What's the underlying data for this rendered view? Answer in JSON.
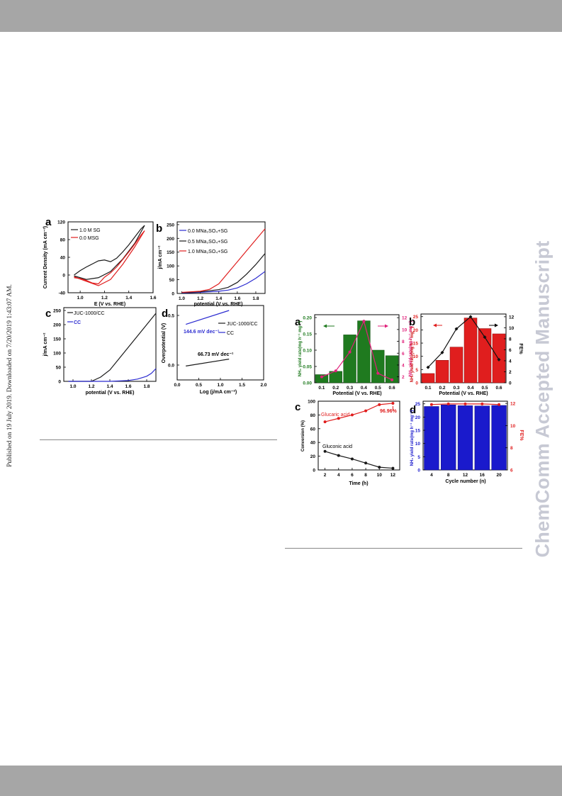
{
  "side_text": "Published on 19 July 2019. Downloaded on 7/20/2019 1:43:07 AM.",
  "watermark": "ChemComm Accepted Manuscript",
  "colors": {
    "black": "#1a1a1a",
    "red": "#e01e1e",
    "blue": "#2b2bd0",
    "green": "#1f7a1f",
    "magenta": "#e0207a",
    "darkred": "#cc1515",
    "navy": "#1a1acc",
    "grey_band": "#a6a6a6"
  },
  "fig_left": {
    "a": {
      "letter": "a",
      "xlabel": "E (V vs. RHE)",
      "ylabel": "Current Density (mA cm⁻²)",
      "xticks": [
        "1.0",
        "1.2",
        "1.4",
        "1.6"
      ],
      "yticks": [
        "120",
        "80",
        "40",
        "0",
        "-40"
      ],
      "legend": [
        "1.0 M SG",
        "0.0 MSG"
      ]
    },
    "b": {
      "letter": "b",
      "xlabel": "potential (V vs. RHE)",
      "ylabel": "j/mA cm⁻²",
      "xticks": [
        "1.0",
        "1.2",
        "1.4",
        "1.6",
        "1.8"
      ],
      "yticks": [
        "250",
        "200",
        "150",
        "100",
        "50",
        "0"
      ],
      "legend": [
        "0.0 MNa₂SO₄+SG",
        "0.5 MNa₂SO₄+SG",
        "1.0 MNa₂SO₄+SG"
      ]
    },
    "c": {
      "letter": "c",
      "xlabel": "potential (V vs. RHE)",
      "ylabel": "j/mA cm⁻²",
      "xticks": [
        "1.0",
        "1.2",
        "1.4",
        "1.6",
        "1.8"
      ],
      "yticks": [
        "250",
        "200",
        "150",
        "100",
        "50",
        "0"
      ],
      "legend": [
        "JUC-1000/CC",
        "CC"
      ]
    },
    "d": {
      "letter": "d",
      "xlabel": "Log (j/mA cm⁻²)",
      "ylabel": "Overpotential (V)",
      "xticks": [
        "0.0",
        "0.5",
        "1.0",
        "1.5",
        "2.0"
      ],
      "yticks": [
        "0.5",
        "0.0"
      ],
      "legend": [
        "JUC-1000/CC",
        "CC"
      ],
      "slope_cc": "144.6 mV dec⁻¹",
      "slope_juc": "66.73 mV dec⁻¹"
    }
  },
  "fig_right": {
    "a": {
      "letter": "a",
      "xlabel": "Potential (V vs. RHE)",
      "ylabel_left": "NH₃ yield rate(mg h⁻¹ mg⁻¹)",
      "ylabel_right": "NH₃ yield rate(mg h⁻¹ mg⁻¹)",
      "xticks": [
        "0.1",
        "0.2",
        "0.3",
        "0.4",
        "0.5",
        "0.6"
      ],
      "yticks_left": [
        "0.20",
        "0.15",
        "0.10",
        "0.05",
        "0.00"
      ],
      "yticks_right": [
        "12",
        "10",
        "8",
        "6",
        "4",
        "2"
      ]
    },
    "b": {
      "letter": "b",
      "xlabel": "Potential (V vs. RHE)",
      "ylabel_right": "FE%",
      "ylabel_left": "NH₃ yield rate(mg h⁻¹ mg⁻¹)",
      "xticks": [
        "0.1",
        "0.2",
        "0.3",
        "0.4",
        "0.5",
        "0.6"
      ],
      "yticks_left": [
        "25",
        "20",
        "15",
        "10",
        "5",
        "0"
      ],
      "yticks_right": [
        "12",
        "10",
        "8",
        "6",
        "4",
        "2",
        "0"
      ]
    },
    "c": {
      "letter": "c",
      "xlabel": "Time (h)",
      "ylabel": "Conversion (%)",
      "xticks": [
        "2",
        "4",
        "6",
        "8",
        "10",
        "12"
      ],
      "yticks": [
        "100",
        "80",
        "60",
        "40",
        "20",
        "0"
      ],
      "label_glucaric": "Glucaric acid",
      "label_gluconic": "Gluconic acid",
      "annotation": "96.96%"
    },
    "d": {
      "letter": "d",
      "xlabel": "Cycle number (n)",
      "ylabel_left": "NH₃ yield rate(mg h⁻¹ mg⁻¹)",
      "ylabel_right": "FE%",
      "xticks": [
        "4",
        "8",
        "12",
        "16",
        "20"
      ],
      "yticks_left": [
        "25",
        "20",
        "15",
        "10",
        "5",
        "0"
      ],
      "yticks_right": [
        "12",
        "10",
        "8",
        "6"
      ]
    }
  },
  "chart_data": [
    {
      "panel": "left-a",
      "type": "line",
      "series": [
        {
          "name": "1.0 M SG",
          "x": [
            0.95,
            1.0,
            1.05,
            1.1,
            1.15,
            1.2,
            1.25,
            1.3,
            1.35,
            1.4,
            1.45,
            1.5,
            1.53
          ],
          "y": [
            0,
            10,
            18,
            25,
            32,
            34,
            30,
            38,
            52,
            68,
            86,
            104,
            112
          ]
        },
        {
          "name": "0.0 MSG",
          "x": [
            0.95,
            1.0,
            1.05,
            1.1,
            1.15,
            1.2,
            1.25,
            1.3,
            1.35,
            1.4,
            1.45,
            1.5,
            1.53
          ],
          "y": [
            -6,
            -8,
            -12,
            -18,
            -20,
            -5,
            5,
            18,
            35,
            52,
            70,
            90,
            100
          ]
        }
      ],
      "xlim": [
        0.9,
        1.6
      ],
      "ylim": [
        -40,
        120
      ]
    },
    {
      "panel": "left-b",
      "type": "line",
      "series": [
        {
          "name": "0.0 MNa2SO4+SG",
          "x": [
            1.0,
            1.2,
            1.4,
            1.5,
            1.6,
            1.7,
            1.8,
            1.9
          ],
          "y": [
            2,
            4,
            8,
            12,
            20,
            35,
            55,
            80
          ]
        },
        {
          "name": "0.5 MNa2SO4+SG",
          "x": [
            1.0,
            1.2,
            1.4,
            1.5,
            1.6,
            1.7,
            1.8,
            1.9
          ],
          "y": [
            3,
            6,
            14,
            22,
            40,
            70,
            105,
            145
          ]
        },
        {
          "name": "1.0 MNa2SO4+SG",
          "x": [
            1.0,
            1.2,
            1.3,
            1.4,
            1.5,
            1.6,
            1.7,
            1.8,
            1.9
          ],
          "y": [
            4,
            8,
            15,
            35,
            75,
            115,
            155,
            195,
            235
          ]
        }
      ],
      "xlim": [
        0.95,
        1.9
      ],
      "ylim": [
        0,
        250
      ]
    },
    {
      "panel": "left-c",
      "type": "line",
      "series": [
        {
          "name": "JUC-1000/CC",
          "x": [
            0.95,
            1.2,
            1.3,
            1.4,
            1.5,
            1.6,
            1.7,
            1.8,
            1.9
          ],
          "y": [
            0,
            0,
            15,
            40,
            80,
            120,
            160,
            200,
            240
          ]
        },
        {
          "name": "CC",
          "x": [
            0.95,
            1.4,
            1.6,
            1.7,
            1.8,
            1.85,
            1.9
          ],
          "y": [
            0,
            0,
            3,
            8,
            18,
            28,
            45
          ]
        }
      ],
      "xlim": [
        0.9,
        1.9
      ],
      "ylim": [
        0,
        250
      ]
    },
    {
      "panel": "left-d",
      "type": "line",
      "series": [
        {
          "name": "CC",
          "x": [
            0.2,
            1.2
          ],
          "y": [
            0.41,
            0.55
          ]
        },
        {
          "name": "JUC-1000/CC",
          "x": [
            0.2,
            1.2
          ],
          "y": [
            -0.01,
            0.06
          ]
        }
      ],
      "xlim": [
        0.0,
        2.0
      ],
      "ylim": [
        -0.15,
        0.6
      ]
    },
    {
      "panel": "right-a",
      "type": "bar",
      "categories": [
        "0.1",
        "0.2",
        "0.3",
        "0.4",
        "0.5",
        "0.6"
      ],
      "series": [
        {
          "name": "NH3 yield rate",
          "values": [
            0.025,
            0.035,
            0.147,
            0.19,
            0.1,
            0.083
          ]
        },
        {
          "name": "NH3 yield rate (right axis)",
          "values": [
            2.0,
            3.0,
            6.2,
            11.4,
            2.6,
            1.5
          ]
        }
      ],
      "ylim_left": [
        0,
        0.2
      ],
      "ylim_right": [
        1,
        12.5
      ]
    },
    {
      "panel": "right-b",
      "type": "bar",
      "categories": [
        "0.1",
        "0.2",
        "0.3",
        "0.4",
        "0.5",
        "0.6"
      ],
      "series": [
        {
          "name": "NH3 yield rate",
          "values": [
            3.5,
            8.5,
            13.5,
            24.5,
            20.5,
            18.5
          ]
        },
        {
          "name": "FE%",
          "values": [
            2.8,
            5.5,
            9.8,
            12.0,
            8.3,
            4.2
          ]
        }
      ],
      "ylim_left": [
        0,
        26
      ],
      "ylim_right": [
        0,
        12.5
      ]
    },
    {
      "panel": "right-c",
      "type": "line",
      "x": [
        2,
        4,
        6,
        8,
        10,
        12
      ],
      "series": [
        {
          "name": "Glucaric acid",
          "values": [
            70,
            75,
            80,
            86,
            95,
            96.96
          ]
        },
        {
          "name": "Gluconic acid",
          "values": [
            27,
            21,
            16,
            10,
            4,
            2.5
          ]
        }
      ],
      "xlim": [
        1,
        13
      ],
      "ylim": [
        0,
        100
      ]
    },
    {
      "panel": "right-d",
      "type": "bar",
      "categories": [
        "4",
        "8",
        "12",
        "16",
        "20"
      ],
      "series": [
        {
          "name": "NH3 yield rate",
          "values": [
            24.0,
            24.6,
            24.3,
            24.2,
            24.4
          ]
        },
        {
          "name": "FE%",
          "values": [
            11.9,
            11.95,
            11.95,
            11.95,
            11.9
          ]
        }
      ],
      "ylim_left": [
        0,
        26
      ],
      "ylim_right": [
        6,
        12
      ]
    }
  ]
}
